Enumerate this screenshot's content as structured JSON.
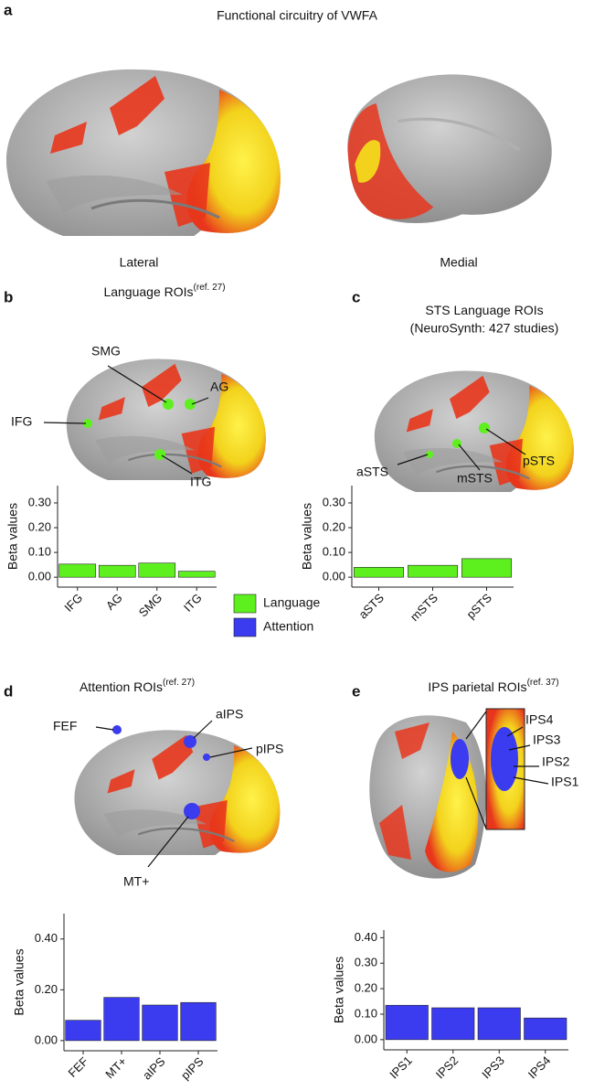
{
  "figure": {
    "title": "Functional circuitry of VWFA",
    "panel_labels": [
      "a",
      "b",
      "c",
      "d",
      "e"
    ],
    "brain_views": [
      "Lateral",
      "Medial"
    ],
    "roi_labels": {
      "b": [
        "SMG",
        "AG",
        "IFG",
        "ITG"
      ],
      "c": [
        "aSTS",
        "mSTS",
        "pSTS"
      ],
      "d": [
        "FEF",
        "aIPS",
        "pIPS",
        "MT+"
      ],
      "e": [
        "IPS4",
        "IPS3",
        "IPS2",
        "IPS1"
      ]
    }
  },
  "chart_data": [
    {
      "type": "bar",
      "title": "Language ROIs",
      "title_note": "(ref. 27)",
      "y_label": "Beta values",
      "categories": [
        "IFG",
        "AG",
        "SMG",
        "ITG"
      ],
      "series": [
        {
          "name": "Language",
          "color": "#5ef01e",
          "values": [
            0.053,
            0.048,
            0.057,
            0.024
          ]
        }
      ],
      "ylim": [
        -0.04,
        0.37
      ],
      "yticks": [
        {
          "value": 0,
          "label": "0.00"
        },
        {
          "value": 0.1,
          "label": "0.10"
        },
        {
          "value": 0.2,
          "label": "0.20"
        },
        {
          "value": 0.3,
          "label": "0.30"
        }
      ]
    },
    {
      "type": "bar",
      "title": "STS Language ROIs",
      "subtitle": "(NeuroSynth: 427 studies)",
      "y_label": "Beta values",
      "categories": [
        "aSTS",
        "mSTS",
        "pSTS"
      ],
      "color": "#5ef01e",
      "values": [
        0.04,
        0.048,
        0.075
      ],
      "ylim": [
        -0.04,
        0.37
      ],
      "yticks": [
        {
          "value": 0,
          "label": "0.00"
        },
        {
          "value": 0.1,
          "label": "0.10"
        },
        {
          "value": 0.2,
          "label": "0.20"
        },
        {
          "value": 0.3,
          "label": "0.30"
        }
      ]
    },
    {
      "type": "bar",
      "title": "Attention ROIs",
      "title_note": "(ref. 27)",
      "y_label": "Beta values",
      "categories": [
        "FEF",
        "MT+",
        "aIPS",
        "pIPS"
      ],
      "series": [
        {
          "name": "Attention",
          "color": "#3b3bf0",
          "values": [
            0.08,
            0.17,
            0.14,
            0.15
          ]
        }
      ],
      "ylim": [
        -0.04,
        0.5
      ],
      "yticks": [
        {
          "value": 0,
          "label": "0.00"
        },
        {
          "value": 0.2,
          "label": "0.20"
        },
        {
          "value": 0.4,
          "label": "0.40"
        }
      ]
    },
    {
      "type": "bar",
      "title": "IPS parietal ROIs",
      "title_note": "(ref. 37)",
      "y_label": "Beta values",
      "categories": [
        "IPS1",
        "IPS2",
        "IPS3",
        "IPS4"
      ],
      "color": "#3b3bf0",
      "values": [
        0.135,
        0.125,
        0.125,
        0.085
      ],
      "ylim": [
        -0.04,
        0.43
      ],
      "yticks": [
        {
          "value": 0,
          "label": "0.00"
        },
        {
          "value": 0.1,
          "label": "0.10"
        },
        {
          "value": 0.2,
          "label": "0.20"
        },
        {
          "value": 0.3,
          "label": "0.30"
        },
        {
          "value": 0.4,
          "label": "0.40"
        }
      ]
    }
  ]
}
